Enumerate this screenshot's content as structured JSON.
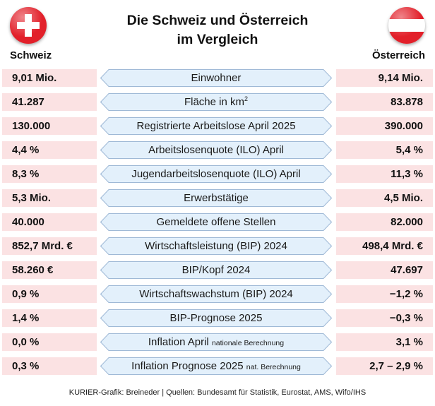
{
  "title": {
    "line1": "Die Schweiz und Österreich",
    "line2": "im Vergleich"
  },
  "countries": {
    "left": "Schweiz",
    "right": "Österreich"
  },
  "colors": {
    "swiss_red": "#e2202a",
    "austria_red": "#e2202a",
    "value_cell_bg": "#fbe2e3",
    "label_bg": "#e3f0fb",
    "label_border": "#9fb9d6"
  },
  "icons": {
    "left_flag": "swiss-flag-icon",
    "right_flag": "austria-flag-icon"
  },
  "rows": [
    {
      "ch": "9,01 Mio.",
      "label": "Einwohner",
      "note": "",
      "at": "9,14 Mio."
    },
    {
      "ch": "41.287",
      "label": "Fläche in km",
      "sup": "2",
      "note": "",
      "at": "83.878"
    },
    {
      "ch": "130.000",
      "label": "Registrierte Arbeitslose April 2025",
      "note": "",
      "at": "390.000"
    },
    {
      "ch": "4,4 %",
      "label": "Arbeitslosenquote (ILO) April",
      "note": "",
      "at": "5,4 %"
    },
    {
      "ch": "8,3 %",
      "label": "Jugendarbeitslosenquote (ILO) April",
      "note": "",
      "at": "11,3 %"
    },
    {
      "ch": "5,3 Mio.",
      "label": "Erwerbstätige",
      "note": "",
      "at": "4,5 Mio."
    },
    {
      "ch": "40.000",
      "label": "Gemeldete offene Stellen",
      "note": "",
      "at": "82.000"
    },
    {
      "ch": "852,7 Mrd. €",
      "label": "Wirtschaftsleistung (BIP) 2024",
      "note": "",
      "at": "498,4 Mrd. €"
    },
    {
      "ch": "58.260 €",
      "label": "BIP/Kopf 2024",
      "note": "",
      "at": "47.697"
    },
    {
      "ch": "0,9 %",
      "label": "Wirtschaftswachstum (BIP) 2024",
      "note": "",
      "at": "−1,2 %"
    },
    {
      "ch": "1,4 %",
      "label": "BIP-Prognose 2025",
      "note": "",
      "at": "−0,3 %"
    },
    {
      "ch": "0,0 %",
      "label": "Inflation April",
      "note": "nationale Berechnung",
      "at": "3,1 %"
    },
    {
      "ch": "0,3 %",
      "label": "Inflation Prognose 2025",
      "note": "nat. Berechnung",
      "at": "2,7 – 2,9 %"
    }
  ],
  "footer": "KURIER-Grafik: Breineder | Quellen: Bundesamt für Statistik, Eurostat, AMS, Wifo/IHS"
}
